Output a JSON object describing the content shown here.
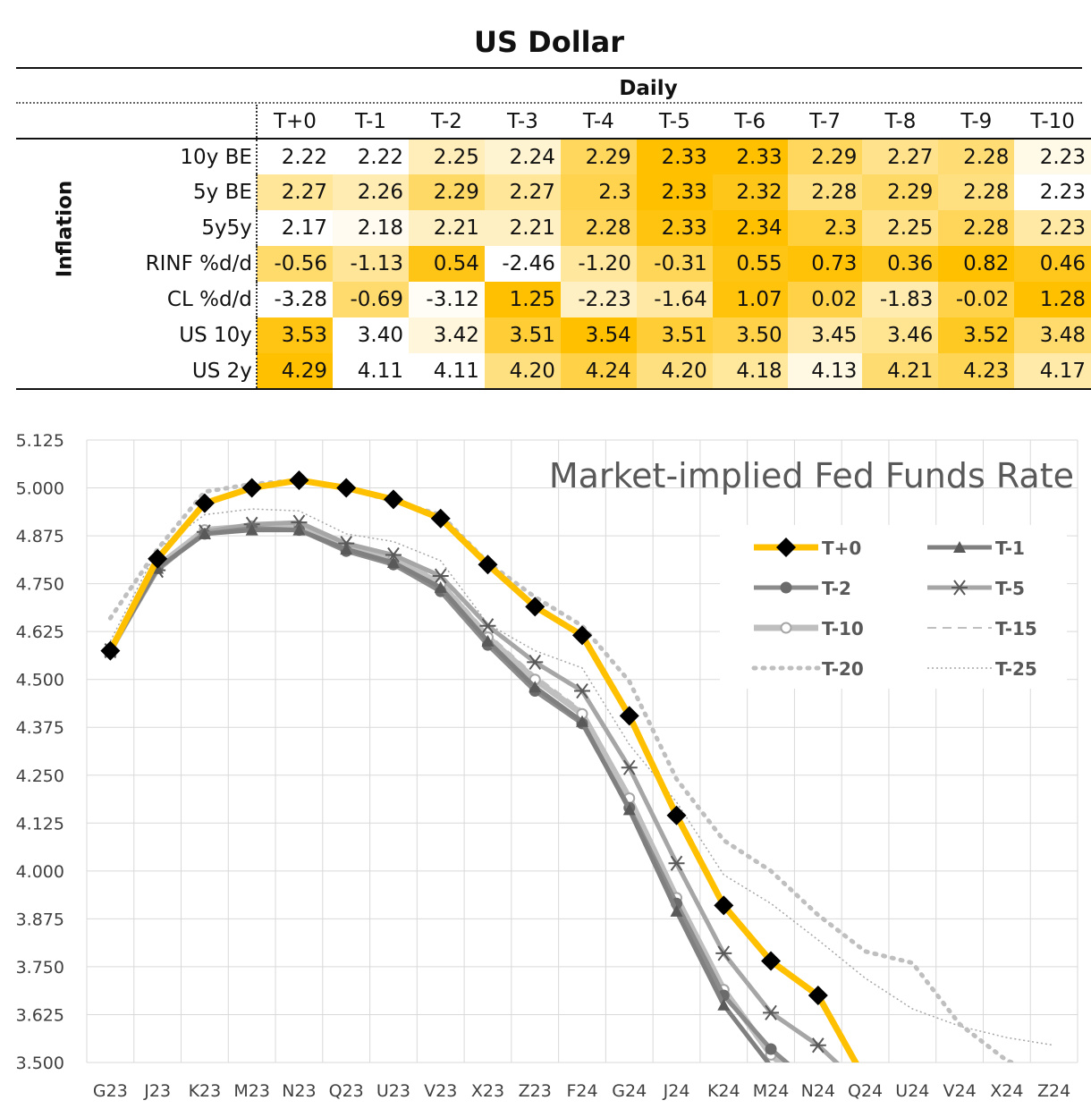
{
  "title": "US Dollar",
  "table": {
    "group_header": "Daily",
    "row_group_label": "Inflation",
    "columns": [
      "T+0",
      "T-1",
      "T-2",
      "T-3",
      "T-4",
      "T-5",
      "T-6",
      "T-7",
      "T-8",
      "T-9",
      "T-10"
    ],
    "rows": [
      {
        "label": "10y BE",
        "values": [
          "2.22",
          "2.22",
          "2.25",
          "2.24",
          "2.29",
          "2.33",
          "2.33",
          "2.29",
          "2.27",
          "2.28",
          "2.23"
        ]
      },
      {
        "label": "5y BE",
        "values": [
          "2.27",
          "2.26",
          "2.29",
          "2.27",
          "2.3",
          "2.33",
          "2.32",
          "2.28",
          "2.29",
          "2.28",
          "2.23"
        ]
      },
      {
        "label": "5y5y",
        "values": [
          "2.17",
          "2.18",
          "2.21",
          "2.21",
          "2.28",
          "2.33",
          "2.34",
          "2.3",
          "2.25",
          "2.28",
          "2.23"
        ]
      },
      {
        "label": "RINF %d/d",
        "values": [
          "-0.56",
          "-1.13",
          "0.54",
          "-2.46",
          "-1.20",
          "-0.31",
          "0.55",
          "0.73",
          "0.36",
          "0.82",
          "0.46"
        ]
      },
      {
        "label": "CL %d/d",
        "values": [
          "-3.28",
          "-0.69",
          "-3.12",
          "1.25",
          "-2.23",
          "-1.64",
          "1.07",
          "0.02",
          "-1.83",
          "-0.02",
          "1.28"
        ]
      },
      {
        "label": "US 10y",
        "values": [
          "3.53",
          "3.40",
          "3.42",
          "3.51",
          "3.54",
          "3.51",
          "3.50",
          "3.45",
          "3.46",
          "3.52",
          "3.48"
        ]
      },
      {
        "label": "US 2y",
        "values": [
          "4.29",
          "4.11",
          "4.11",
          "4.20",
          "4.24",
          "4.20",
          "4.18",
          "4.13",
          "4.21",
          "4.23",
          "4.17"
        ]
      }
    ],
    "colors": {
      "low": "#ffffff",
      "high": "#ffc000"
    }
  },
  "chart_data": {
    "type": "line",
    "title": "Market-implied Fed Funds Rate",
    "categories": [
      "G23",
      "J23",
      "K23",
      "M23",
      "N23",
      "Q23",
      "U23",
      "V23",
      "X23",
      "Z23",
      "F24",
      "G24",
      "J24",
      "K24",
      "M24",
      "N24",
      "Q24",
      "U24",
      "V24",
      "X24",
      "Z24"
    ],
    "ylim": [
      3.5,
      5.125
    ],
    "yticks": [
      "5.125",
      "5.000",
      "4.875",
      "4.750",
      "4.625",
      "4.500",
      "4.375",
      "4.250",
      "4.125",
      "4.000",
      "3.875",
      "3.750",
      "3.625",
      "3.500"
    ],
    "grid": true,
    "legend_position": "top-right",
    "series": [
      {
        "name": "T+0",
        "color": "#ffc000",
        "style": "solid-thick",
        "marker": "diamond",
        "values": [
          4.575,
          4.815,
          4.96,
          5.0,
          5.02,
          5.0,
          4.97,
          4.92,
          4.8,
          4.69,
          4.615,
          4.405,
          4.145,
          3.91,
          3.765,
          3.675,
          3.455,
          null,
          null,
          null,
          null
        ]
      },
      {
        "name": "T-1",
        "color": "#808080",
        "style": "solid",
        "marker": "triangle",
        "values": [
          4.575,
          4.79,
          4.88,
          4.89,
          4.89,
          4.84,
          4.805,
          4.74,
          4.6,
          4.48,
          4.39,
          4.16,
          3.895,
          3.65,
          3.49,
          3.4,
          null,
          null,
          null,
          null,
          null
        ]
      },
      {
        "name": "T-2",
        "color": "#8c8c8c",
        "style": "solid",
        "marker": "circle",
        "values": [
          4.575,
          4.79,
          4.88,
          4.895,
          4.89,
          4.835,
          4.8,
          4.73,
          4.59,
          4.47,
          4.385,
          4.165,
          3.915,
          3.675,
          3.535,
          3.43,
          null,
          null,
          null,
          null,
          null
        ]
      },
      {
        "name": "T-5",
        "color": "#a6a6a6",
        "style": "solid",
        "marker": "star",
        "values": [
          4.575,
          4.785,
          4.885,
          4.905,
          4.91,
          4.855,
          4.825,
          4.77,
          4.64,
          4.545,
          4.47,
          4.27,
          4.02,
          3.785,
          3.63,
          3.545,
          3.43,
          null,
          null,
          null,
          null
        ]
      },
      {
        "name": "T-10",
        "color": "#bfbfbf",
        "style": "solid-thick",
        "marker": "open-circle",
        "values": [
          4.575,
          4.795,
          4.89,
          4.9,
          4.9,
          4.845,
          4.815,
          4.75,
          4.61,
          4.5,
          4.41,
          4.19,
          3.93,
          3.69,
          3.52,
          3.42,
          null,
          null,
          null,
          null,
          null
        ]
      },
      {
        "name": "T-15",
        "color": "#bfbfbf",
        "style": "dashed",
        "marker": "none",
        "values": [
          4.575,
          4.8,
          4.89,
          4.9,
          4.905,
          4.85,
          4.82,
          4.76,
          4.62,
          4.51,
          4.42,
          4.2,
          3.94,
          3.7,
          3.53,
          3.44,
          null,
          null,
          null,
          null,
          null
        ]
      },
      {
        "name": "T-20",
        "color": "#bfbfbf",
        "style": "dotted-thick",
        "marker": "none",
        "values": [
          4.66,
          4.84,
          4.99,
          5.01,
          5.02,
          5.0,
          4.965,
          4.93,
          4.805,
          4.715,
          4.64,
          4.495,
          4.24,
          4.08,
          4.0,
          3.885,
          3.79,
          3.76,
          3.6,
          3.505,
          3.46
        ]
      },
      {
        "name": "T-25",
        "color": "#a6a6a6",
        "style": "dotted-thin",
        "marker": "none",
        "values": [
          4.6,
          4.84,
          4.93,
          4.945,
          4.94,
          4.88,
          4.86,
          4.81,
          4.645,
          4.575,
          4.53,
          4.33,
          4.18,
          3.99,
          3.915,
          3.82,
          3.72,
          3.64,
          3.595,
          3.565,
          3.545
        ]
      }
    ]
  }
}
